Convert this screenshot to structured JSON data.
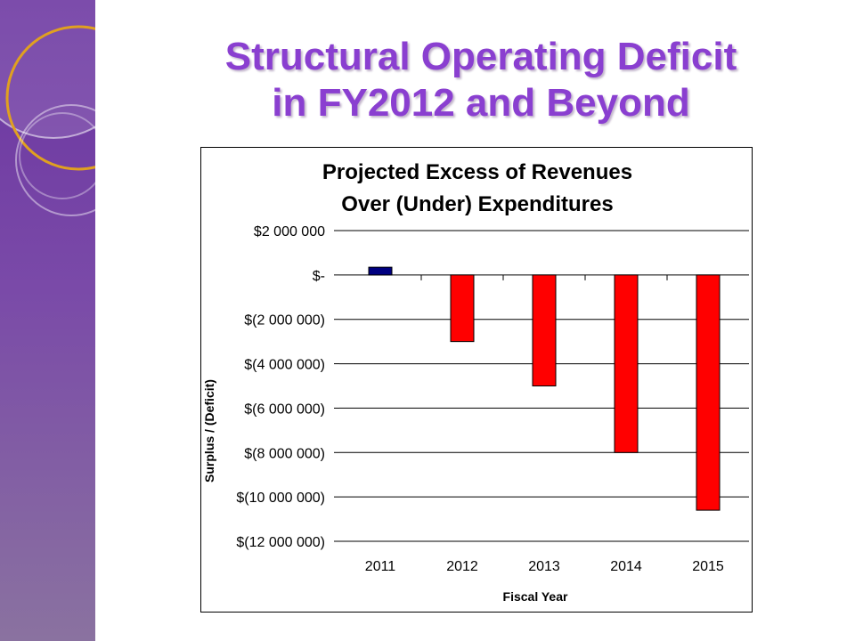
{
  "slide": {
    "title_line1": "Structural Operating Deficit",
    "title_line2": "in FY2012 and Beyond"
  },
  "colors": {
    "sidebar": "#6a34a0",
    "title": "#8a3fd0",
    "positive_bar": "#000080",
    "negative_bar": "#ff0000"
  },
  "chart_data": {
    "type": "bar",
    "title_line1": "Projected Excess of Revenues",
    "title_line2": "Over (Under) Expenditures",
    "xlabel": "Fiscal Year",
    "ylabel": "Surplus / (Deficit)",
    "categories": [
      "2011",
      "2012",
      "2013",
      "2014",
      "2015"
    ],
    "values": [
      350000,
      -3000000,
      -5000000,
      -8000000,
      -10600000
    ],
    "ylim": [
      -12000000,
      2000000
    ],
    "yticks": [
      2000000,
      0,
      -2000000,
      -4000000,
      -6000000,
      -8000000,
      -10000000,
      -12000000
    ],
    "ytick_labels": [
      "$2 000 000",
      "$-",
      "$(2 000 000)",
      "$(4 000 000)",
      "$(6 000 000)",
      "$(8 000 000)",
      "$(10 000 000)",
      "$(12 000 000)"
    ],
    "grid": true,
    "legend": "none"
  }
}
